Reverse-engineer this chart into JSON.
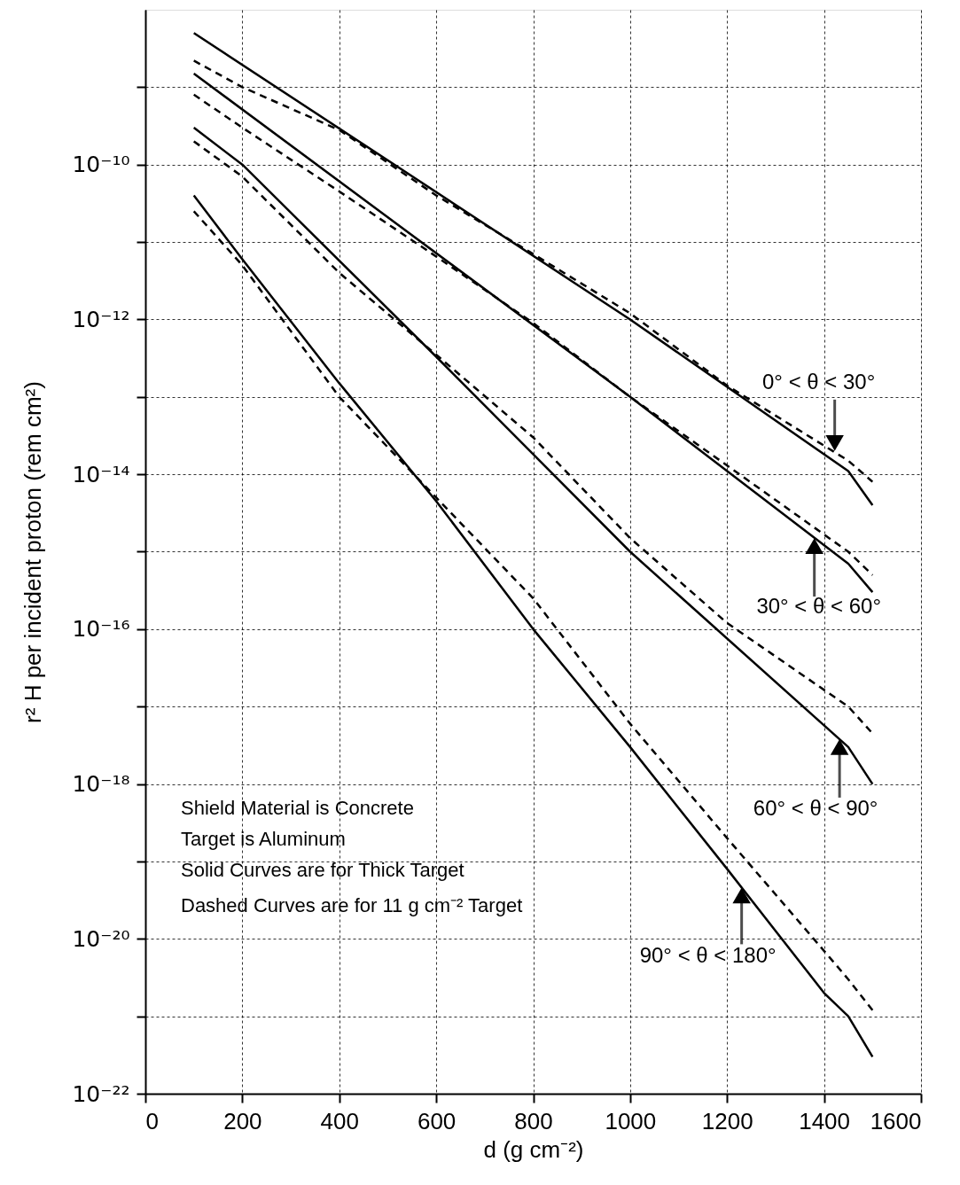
{
  "chart_data": {
    "type": "line",
    "xlabel": "d (g cm⁻²)",
    "ylabel": "r² H per incident proton (rem cm²)",
    "log": "y",
    "grid": true,
    "marker": "none",
    "xlim": [
      0,
      1600
    ],
    "xticks": [
      0,
      200,
      400,
      600,
      800,
      1000,
      1200,
      1400,
      1600
    ],
    "ylim": [
      1e-22,
      1e-08
    ],
    "yticks": [
      {
        "value": 1e-22,
        "label": "10⁻²²"
      },
      {
        "value": 1e-21,
        "label": null
      },
      {
        "value": 1e-20,
        "label": "10⁻²⁰"
      },
      {
        "value": 1e-19,
        "label": null
      },
      {
        "value": 1e-18,
        "label": "10⁻¹⁸"
      },
      {
        "value": 1e-17,
        "label": null
      },
      {
        "value": 1e-16,
        "label": "10⁻¹⁶"
      },
      {
        "value": 1e-15,
        "label": null
      },
      {
        "value": 1e-14,
        "label": "10⁻¹⁴"
      },
      {
        "value": 1e-13,
        "label": null
      },
      {
        "value": 1e-12,
        "label": "10⁻¹²"
      },
      {
        "value": 1e-11,
        "label": null
      },
      {
        "value": 1e-10,
        "label": "10⁻¹⁰"
      },
      {
        "value": 1e-09,
        "label": null
      }
    ],
    "series": [
      {
        "color": "#000000",
        "line_style": "solid",
        "x": [
          100,
          1000,
          1450,
          1500
        ],
        "values": [
          5e-09,
          1e-12,
          1.1e-14,
          4e-15
        ]
      },
      {
        "color": "#000000",
        "line_style": "dashed",
        "x": [
          100,
          200,
          400,
          600,
          800,
          1000,
          1200,
          1450,
          1500
        ],
        "values": [
          2.2e-09,
          1e-09,
          2.8e-10,
          4e-11,
          7e-12,
          1.2e-12,
          1.4e-13,
          1.5e-14,
          8e-15
        ]
      },
      {
        "color": "#000000",
        "line_style": "solid",
        "x": [
          100,
          1000,
          1450,
          1500
        ],
        "values": [
          1.5e-09,
          1e-13,
          7e-16,
          3e-16
        ]
      },
      {
        "color": "#000000",
        "line_style": "dashed",
        "x": [
          100,
          200,
          400,
          600,
          800,
          1000,
          1200,
          1450,
          1500
        ],
        "values": [
          8e-10,
          3e-10,
          4.5e-11,
          6.5e-12,
          9e-13,
          1e-13,
          1.3e-14,
          1e-15,
          5e-16
        ]
      },
      {
        "color": "#000000",
        "line_style": "solid",
        "x": [
          100,
          200,
          600,
          1000,
          1450,
          1500
        ],
        "values": [
          3e-10,
          1e-10,
          3.3e-13,
          1e-15,
          3e-18,
          1e-18
        ]
      },
      {
        "color": "#000000",
        "line_style": "dashed",
        "x": [
          100,
          200,
          400,
          600,
          800,
          1000,
          1200,
          1450,
          1500
        ],
        "values": [
          2e-10,
          7e-11,
          4e-12,
          3.5e-13,
          3e-14,
          1.5e-15,
          1.2e-16,
          1e-17,
          4.5e-18
        ]
      },
      {
        "color": "#000000",
        "line_style": "solid",
        "x": [
          100,
          200,
          400,
          600,
          800,
          1000,
          1200,
          1400,
          1450,
          1500
        ],
        "values": [
          4e-11,
          6e-12,
          1.5e-13,
          4.5e-15,
          1e-16,
          3e-18,
          8e-20,
          2e-21,
          1e-21,
          3e-22
        ]
      },
      {
        "color": "#000000",
        "line_style": "dashed",
        "x": [
          100,
          200,
          400,
          600,
          800,
          1000,
          1200,
          1400,
          1450,
          1500
        ],
        "values": [
          2.5e-11,
          5e-12,
          1e-13,
          5e-15,
          2.5e-16,
          6e-18,
          2e-19,
          7e-21,
          3e-21,
          1.2e-21
        ]
      }
    ],
    "annotations": [
      {
        "text": "0° < θ < 30°",
        "x": 1422,
        "y": 2e-14
      },
      {
        "text": "30° < θ < 60°",
        "x": 1380,
        "y": 1.5e-15
      },
      {
        "text": "60° < θ < 90°",
        "x": 1432,
        "y": 3.8e-18
      },
      {
        "text": "90° < θ < 180°",
        "x": 1230,
        "y": 4.6e-20
      },
      "Shield Material is Concrete",
      "Target is Aluminum",
      "Solid Curves are for Thick Target",
      "Dashed Curves are for 11 g cm⁻² Target"
    ]
  }
}
